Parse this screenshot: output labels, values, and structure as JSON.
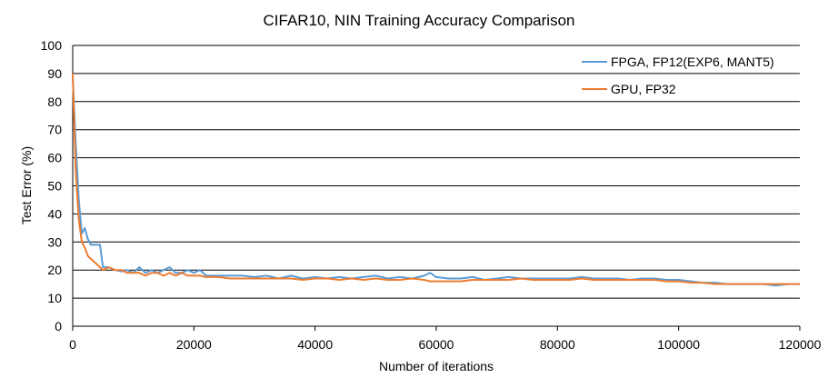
{
  "chart_data": {
    "type": "line",
    "title": "CIFAR10, NIN Training Accuracy Comparison",
    "xlabel": "Number of iterations",
    "ylabel": "Test Error (%)",
    "xlim": [
      0,
      120000
    ],
    "ylim": [
      0,
      100
    ],
    "xticks": [
      "0",
      "20000",
      "40000",
      "60000",
      "80000",
      "100000",
      "120000"
    ],
    "yticks": [
      "0",
      "10",
      "20",
      "30",
      "40",
      "50",
      "60",
      "70",
      "80",
      "90",
      "100"
    ],
    "grid": "horizontal",
    "legend_position": "top-right",
    "series": [
      {
        "name": "FPGA, FP12(EXP6, MANT5)",
        "color": "#5b9bd5",
        "x": [
          0,
          500,
          1000,
          1500,
          2000,
          2500,
          3000,
          3500,
          4000,
          4500,
          5000,
          6000,
          7000,
          8000,
          9000,
          10000,
          11000,
          12000,
          13000,
          14000,
          15000,
          16000,
          17000,
          18000,
          19000,
          20000,
          21000,
          22000,
          24000,
          26000,
          28000,
          30000,
          32000,
          34000,
          36000,
          38000,
          40000,
          42000,
          44000,
          46000,
          48000,
          50000,
          52000,
          54000,
          56000,
          58000,
          59000,
          60000,
          62000,
          64000,
          66000,
          68000,
          70000,
          72000,
          74000,
          76000,
          78000,
          80000,
          82000,
          84000,
          86000,
          88000,
          90000,
          92000,
          94000,
          96000,
          98000,
          100000,
          102000,
          104000,
          106000,
          108000,
          110000,
          112000,
          114000,
          116000,
          118000,
          120000
        ],
        "values": [
          89,
          65,
          45,
          33,
          35,
          31,
          29,
          29,
          29,
          29,
          21,
          21,
          20,
          19.5,
          20,
          19,
          21,
          19,
          20,
          19,
          20,
          21,
          19,
          19,
          20,
          19,
          20,
          18,
          18,
          18,
          18,
          17.5,
          18,
          17,
          18,
          17,
          17.5,
          17,
          17.5,
          17,
          17.5,
          18,
          17,
          17.5,
          17,
          18,
          19,
          17.5,
          17,
          17,
          17.5,
          16.5,
          17,
          17.5,
          17,
          17,
          17,
          17,
          17,
          17.5,
          17,
          17,
          17,
          16.5,
          17,
          17,
          16.5,
          16.5,
          16,
          15.5,
          15.5,
          15,
          15,
          15,
          15,
          14.5,
          15,
          15
        ]
      },
      {
        "name": "GPU, FP32",
        "color": "#ed7d31",
        "x": [
          0,
          500,
          1000,
          1500,
          2000,
          2500,
          3000,
          3500,
          4000,
          4500,
          5000,
          6000,
          7000,
          8000,
          9000,
          10000,
          11000,
          12000,
          13000,
          14000,
          15000,
          16000,
          17000,
          18000,
          19000,
          20000,
          21000,
          22000,
          24000,
          26000,
          28000,
          30000,
          32000,
          34000,
          36000,
          38000,
          40000,
          42000,
          44000,
          46000,
          48000,
          50000,
          52000,
          54000,
          56000,
          58000,
          59000,
          60000,
          62000,
          64000,
          66000,
          68000,
          70000,
          72000,
          74000,
          76000,
          78000,
          80000,
          82000,
          84000,
          86000,
          88000,
          90000,
          92000,
          94000,
          96000,
          98000,
          100000,
          102000,
          104000,
          106000,
          108000,
          110000,
          112000,
          114000,
          116000,
          118000,
          120000
        ],
        "values": [
          90,
          55,
          38,
          30,
          28,
          25,
          24,
          23,
          22,
          21,
          20,
          21,
          20,
          20,
          19,
          19,
          19,
          18,
          19,
          19,
          18,
          19,
          18,
          19,
          18,
          18,
          18,
          17.5,
          17.5,
          17,
          17,
          17,
          17,
          17,
          17,
          16.5,
          17,
          17,
          16.5,
          17,
          16.5,
          17,
          16.5,
          16.5,
          17,
          16.5,
          16,
          16,
          16,
          16,
          16.5,
          16.5,
          16.5,
          16.5,
          17,
          16.5,
          16.5,
          16.5,
          16.5,
          17,
          16.5,
          16.5,
          16.5,
          16.5,
          16.5,
          16.5,
          16,
          16,
          15.5,
          15.5,
          15,
          15,
          15,
          15,
          15,
          15,
          15,
          15
        ]
      }
    ]
  }
}
